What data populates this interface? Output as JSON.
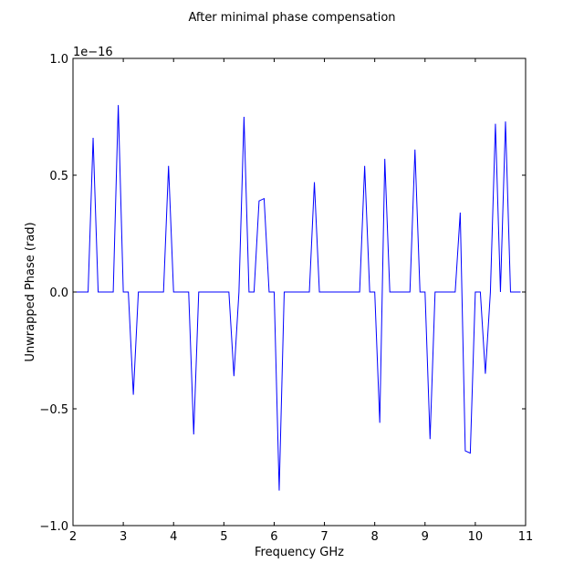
{
  "chart_data": {
    "type": "line",
    "title": "After minimal phase compensation",
    "xlabel": "Frequency GHz",
    "ylabel": "Unwrapped Phase (rad)",
    "y_offset_label": "1e−16",
    "xlim": [
      2,
      11
    ],
    "ylim": [
      -1.0,
      1.0
    ],
    "x_ticks": [
      2,
      3,
      4,
      5,
      6,
      7,
      8,
      9,
      10,
      11
    ],
    "x_tick_labels": [
      "2",
      "3",
      "4",
      "5",
      "6",
      "7",
      "8",
      "9",
      "10",
      "11"
    ],
    "y_ticks": [
      -1.0,
      -0.5,
      0.0,
      0.5,
      1.0
    ],
    "y_tick_labels": [
      "−1.0",
      "−0.5",
      "0.0",
      "0.5",
      "1.0"
    ],
    "grid": false,
    "series": [
      {
        "color": "#0000ff",
        "x": [
          2.0,
          2.3,
          2.4,
          2.5,
          2.8,
          2.9,
          3.0,
          3.1,
          3.2,
          3.3,
          3.8,
          3.9,
          4.0,
          4.3,
          4.4,
          4.5,
          5.1,
          5.2,
          5.3,
          5.4,
          5.5,
          5.6,
          5.7,
          5.8,
          5.9,
          6.0,
          6.1,
          6.2,
          6.7,
          6.8,
          6.9,
          7.7,
          7.8,
          7.9,
          8.0,
          8.1,
          8.2,
          8.3,
          8.7,
          8.8,
          8.9,
          9.0,
          9.1,
          9.2,
          9.6,
          9.7,
          9.8,
          9.9,
          10.0,
          10.1,
          10.2,
          10.3,
          10.4,
          10.5,
          10.6,
          10.7,
          10.9
        ],
        "y": [
          0.0,
          0.0,
          0.66,
          0.0,
          0.0,
          0.8,
          0.0,
          0.0,
          -0.44,
          0.0,
          0.0,
          0.54,
          0.0,
          0.0,
          -0.61,
          0.0,
          0.0,
          -0.36,
          0.0,
          0.75,
          0.0,
          0.0,
          0.39,
          0.4,
          0.0,
          0.0,
          -0.85,
          0.0,
          0.0,
          0.47,
          0.0,
          0.0,
          0.54,
          0.0,
          0.0,
          -0.56,
          0.57,
          0.0,
          0.0,
          0.61,
          0.0,
          0.0,
          -0.63,
          0.0,
          0.0,
          0.34,
          -0.68,
          -0.69,
          0.0,
          0.0,
          -0.35,
          0.0,
          0.72,
          0.0,
          0.73,
          0.0,
          0.0
        ]
      }
    ]
  }
}
